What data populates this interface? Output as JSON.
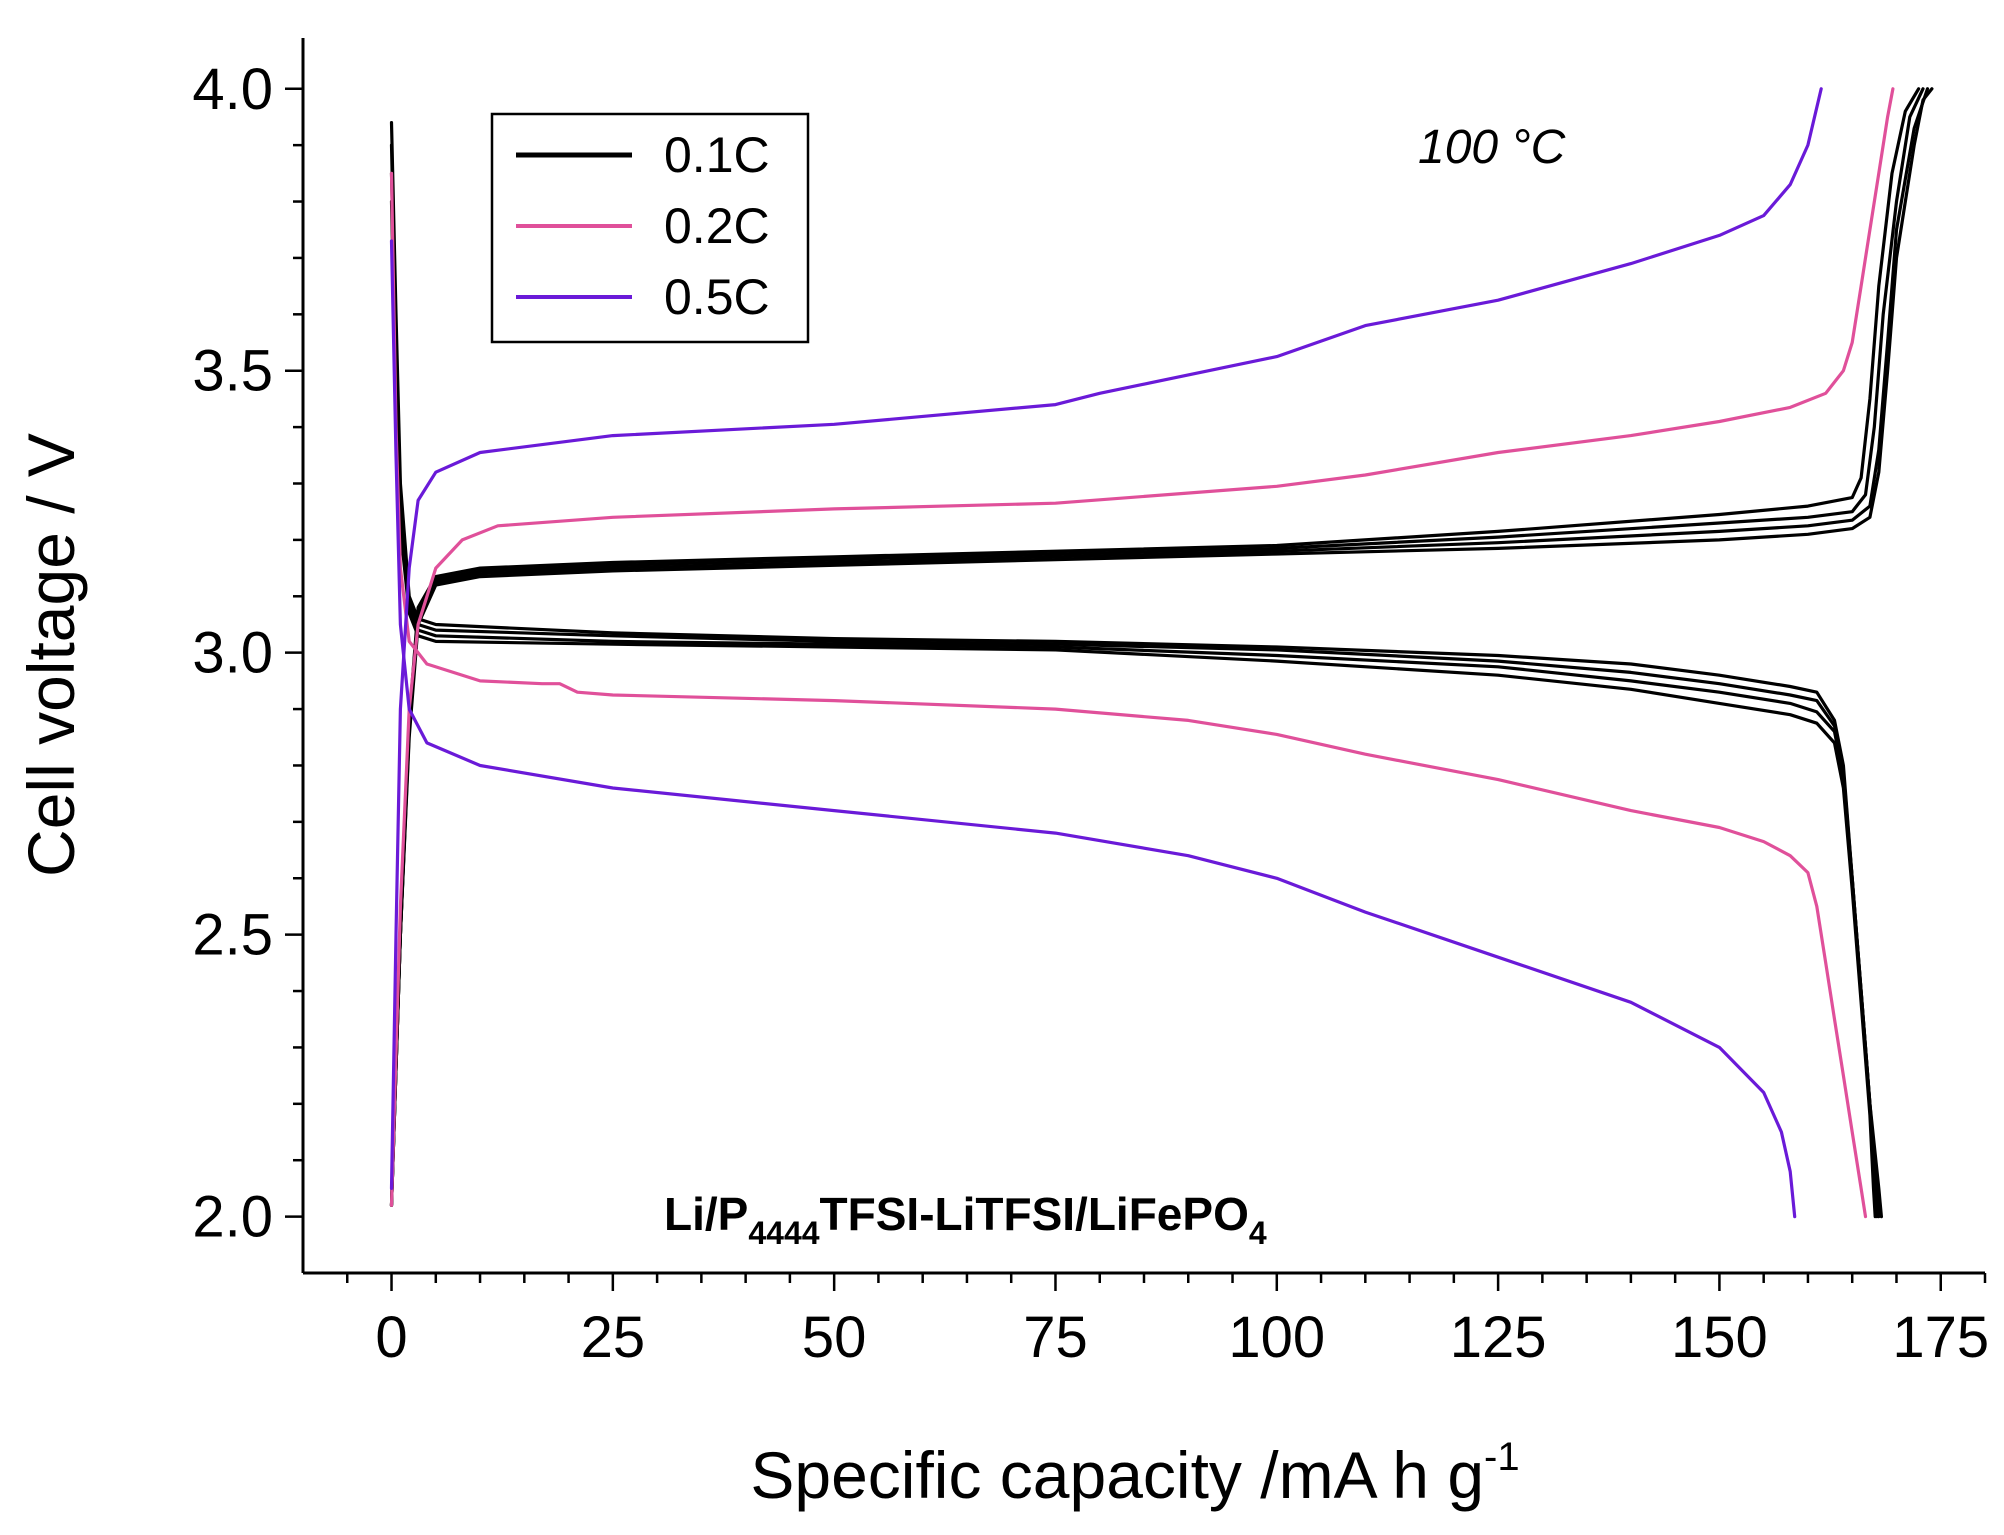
{
  "chart_data": {
    "type": "line",
    "title": "",
    "xlabel": "Specific capacity /mA h g",
    "xlabel_sup": "-1",
    "ylabel": "Cell voltage / V",
    "xlim": [
      -10,
      180
    ],
    "ylim": [
      1.9,
      4.09
    ],
    "xticks": [
      0,
      25,
      50,
      75,
      100,
      125,
      150,
      175
    ],
    "yticks": [
      2.0,
      2.5,
      3.0,
      3.5,
      4.0
    ],
    "xtick_labels": [
      "0",
      "25",
      "50",
      "75",
      "100",
      "125",
      "150",
      "175"
    ],
    "ytick_labels": [
      "2.0",
      "2.5",
      "3.0",
      "3.5",
      "4.0"
    ],
    "annotations": {
      "temperature": "100 °C",
      "cell": {
        "part1": "Li/P",
        "sub1": "4444",
        "part2": "TFSI-LiTFSI/LiFePO",
        "sub2": "4"
      }
    },
    "legend": {
      "location": "top-left",
      "entries": [
        {
          "label": "0.1C",
          "color": "#000000"
        },
        {
          "label": "0.2C",
          "color": "#e0509a"
        },
        {
          "label": "0.5C",
          "color": "#6a1ad8"
        }
      ]
    },
    "series": [
      {
        "name": "0.1C charge 1",
        "rate": "0.1C",
        "color": "#000000",
        "points": [
          [
            0,
            2.02
          ],
          [
            1,
            2.5
          ],
          [
            2,
            2.85
          ],
          [
            3,
            3.05
          ],
          [
            5,
            3.12
          ],
          [
            10,
            3.135
          ],
          [
            25,
            3.145
          ],
          [
            50,
            3.155
          ],
          [
            75,
            3.165
          ],
          [
            100,
            3.175
          ],
          [
            125,
            3.185
          ],
          [
            150,
            3.2
          ],
          [
            160,
            3.21
          ],
          [
            165,
            3.22
          ],
          [
            167,
            3.24
          ],
          [
            168,
            3.32
          ],
          [
            169,
            3.5
          ],
          [
            170,
            3.7
          ],
          [
            172,
            3.9
          ],
          [
            173,
            3.98
          ],
          [
            174,
            4.0
          ]
        ]
      },
      {
        "name": "0.1C charge 2",
        "rate": "0.1C",
        "color": "#000000",
        "points": [
          [
            0,
            2.02
          ],
          [
            1,
            2.5
          ],
          [
            2,
            2.86
          ],
          [
            3,
            3.06
          ],
          [
            5,
            3.125
          ],
          [
            10,
            3.14
          ],
          [
            25,
            3.15
          ],
          [
            50,
            3.16
          ],
          [
            75,
            3.17
          ],
          [
            100,
            3.18
          ],
          [
            125,
            3.195
          ],
          [
            150,
            3.215
          ],
          [
            160,
            3.225
          ],
          [
            165,
            3.235
          ],
          [
            167,
            3.26
          ],
          [
            168,
            3.36
          ],
          [
            169,
            3.55
          ],
          [
            170,
            3.75
          ],
          [
            172,
            3.93
          ],
          [
            173.5,
            4.0
          ]
        ]
      },
      {
        "name": "0.1C charge 3",
        "rate": "0.1C",
        "color": "#000000",
        "points": [
          [
            0,
            2.02
          ],
          [
            1,
            2.5
          ],
          [
            2,
            2.87
          ],
          [
            3,
            3.07
          ],
          [
            5,
            3.13
          ],
          [
            10,
            3.145
          ],
          [
            25,
            3.155
          ],
          [
            50,
            3.165
          ],
          [
            75,
            3.175
          ],
          [
            100,
            3.185
          ],
          [
            125,
            3.205
          ],
          [
            150,
            3.23
          ],
          [
            160,
            3.24
          ],
          [
            165,
            3.25
          ],
          [
            166.5,
            3.28
          ],
          [
            167.5,
            3.4
          ],
          [
            168.5,
            3.6
          ],
          [
            170,
            3.8
          ],
          [
            171.5,
            3.95
          ],
          [
            173,
            4.0
          ]
        ]
      },
      {
        "name": "0.1C charge 4",
        "rate": "0.1C",
        "color": "#000000",
        "points": [
          [
            0,
            2.02
          ],
          [
            1,
            2.5
          ],
          [
            2,
            2.88
          ],
          [
            3,
            3.08
          ],
          [
            5,
            3.135
          ],
          [
            10,
            3.15
          ],
          [
            25,
            3.16
          ],
          [
            50,
            3.17
          ],
          [
            75,
            3.18
          ],
          [
            100,
            3.19
          ],
          [
            125,
            3.215
          ],
          [
            150,
            3.245
          ],
          [
            160,
            3.26
          ],
          [
            165,
            3.275
          ],
          [
            166,
            3.31
          ],
          [
            167,
            3.45
          ],
          [
            168,
            3.65
          ],
          [
            169.5,
            3.85
          ],
          [
            171,
            3.96
          ],
          [
            172.5,
            4.0
          ]
        ]
      },
      {
        "name": "0.1C discharge 1",
        "rate": "0.1C",
        "color": "#000000",
        "points": [
          [
            0,
            3.94
          ],
          [
            0.5,
            3.6
          ],
          [
            1,
            3.3
          ],
          [
            2,
            3.1
          ],
          [
            3,
            3.06
          ],
          [
            5,
            3.05
          ],
          [
            25,
            3.035
          ],
          [
            50,
            3.025
          ],
          [
            75,
            3.02
          ],
          [
            100,
            3.01
          ],
          [
            125,
            2.995
          ],
          [
            140,
            2.98
          ],
          [
            150,
            2.96
          ],
          [
            158,
            2.94
          ],
          [
            161,
            2.93
          ],
          [
            163,
            2.88
          ],
          [
            164,
            2.8
          ],
          [
            165,
            2.6
          ],
          [
            166,
            2.4
          ],
          [
            167,
            2.2
          ],
          [
            168,
            2.05
          ],
          [
            168.3,
            2.0
          ]
        ]
      },
      {
        "name": "0.1C discharge 2",
        "rate": "0.1C",
        "color": "#000000",
        "points": [
          [
            0,
            3.9
          ],
          [
            0.5,
            3.55
          ],
          [
            1,
            3.28
          ],
          [
            2,
            3.09
          ],
          [
            3,
            3.05
          ],
          [
            5,
            3.04
          ],
          [
            25,
            3.03
          ],
          [
            50,
            3.02
          ],
          [
            75,
            3.015
          ],
          [
            100,
            3.005
          ],
          [
            125,
            2.985
          ],
          [
            140,
            2.965
          ],
          [
            150,
            2.945
          ],
          [
            158,
            2.925
          ],
          [
            161,
            2.915
          ],
          [
            163,
            2.87
          ],
          [
            164,
            2.79
          ],
          [
            165,
            2.6
          ],
          [
            166,
            2.4
          ],
          [
            167,
            2.2
          ],
          [
            167.8,
            2.05
          ],
          [
            168,
            2.0
          ]
        ]
      },
      {
        "name": "0.1C discharge 3",
        "rate": "0.1C",
        "color": "#000000",
        "points": [
          [
            0,
            3.85
          ],
          [
            0.5,
            3.5
          ],
          [
            1,
            3.25
          ],
          [
            2,
            3.08
          ],
          [
            3,
            3.04
          ],
          [
            5,
            3.03
          ],
          [
            25,
            3.02
          ],
          [
            50,
            3.015
          ],
          [
            75,
            3.01
          ],
          [
            100,
            2.995
          ],
          [
            125,
            2.975
          ],
          [
            140,
            2.95
          ],
          [
            150,
            2.93
          ],
          [
            158,
            2.91
          ],
          [
            161,
            2.895
          ],
          [
            163,
            2.86
          ],
          [
            164,
            2.78
          ],
          [
            165,
            2.6
          ],
          [
            166,
            2.4
          ],
          [
            167,
            2.2
          ],
          [
            167.6,
            2.05
          ],
          [
            167.8,
            2.0
          ]
        ]
      },
      {
        "name": "0.1C discharge 4",
        "rate": "0.1C",
        "color": "#000000",
        "points": [
          [
            0,
            3.8
          ],
          [
            0.5,
            3.45
          ],
          [
            1,
            3.22
          ],
          [
            2,
            3.07
          ],
          [
            3,
            3.03
          ],
          [
            5,
            3.02
          ],
          [
            25,
            3.015
          ],
          [
            50,
            3.01
          ],
          [
            75,
            3.005
          ],
          [
            100,
            2.985
          ],
          [
            125,
            2.96
          ],
          [
            140,
            2.935
          ],
          [
            150,
            2.91
          ],
          [
            158,
            2.89
          ],
          [
            161,
            2.875
          ],
          [
            163,
            2.84
          ],
          [
            164,
            2.76
          ],
          [
            165,
            2.58
          ],
          [
            166,
            2.38
          ],
          [
            167,
            2.18
          ],
          [
            167.4,
            2.05
          ],
          [
            167.6,
            2.0
          ]
        ]
      },
      {
        "name": "0.2C charge",
        "rate": "0.2C",
        "color": "#e0509a",
        "points": [
          [
            0,
            2.02
          ],
          [
            1,
            2.55
          ],
          [
            2,
            2.9
          ],
          [
            3,
            3.05
          ],
          [
            5,
            3.15
          ],
          [
            8,
            3.2
          ],
          [
            12,
            3.225
          ],
          [
            25,
            3.24
          ],
          [
            50,
            3.255
          ],
          [
            75,
            3.265
          ],
          [
            100,
            3.295
          ],
          [
            110,
            3.315
          ],
          [
            125,
            3.355
          ],
          [
            140,
            3.385
          ],
          [
            150,
            3.41
          ],
          [
            158,
            3.435
          ],
          [
            162,
            3.46
          ],
          [
            164,
            3.5
          ],
          [
            165,
            3.55
          ],
          [
            166,
            3.65
          ],
          [
            167,
            3.75
          ],
          [
            168,
            3.85
          ],
          [
            169,
            3.95
          ],
          [
            169.6,
            4.0
          ]
        ]
      },
      {
        "name": "0.2C discharge",
        "rate": "0.2C",
        "color": "#e0509a",
        "points": [
          [
            0,
            3.85
          ],
          [
            0.5,
            3.4
          ],
          [
            1,
            3.15
          ],
          [
            2,
            3.02
          ],
          [
            4,
            2.98
          ],
          [
            10,
            2.95
          ],
          [
            17,
            2.945
          ],
          [
            19,
            2.945
          ],
          [
            21,
            2.93
          ],
          [
            25,
            2.925
          ],
          [
            50,
            2.915
          ],
          [
            75,
            2.9
          ],
          [
            90,
            2.88
          ],
          [
            100,
            2.855
          ],
          [
            110,
            2.82
          ],
          [
            125,
            2.775
          ],
          [
            140,
            2.72
          ],
          [
            150,
            2.69
          ],
          [
            155,
            2.665
          ],
          [
            158,
            2.64
          ],
          [
            160,
            2.61
          ],
          [
            161,
            2.55
          ],
          [
            162,
            2.45
          ],
          [
            163,
            2.35
          ],
          [
            164,
            2.25
          ],
          [
            165,
            2.15
          ],
          [
            166,
            2.05
          ],
          [
            166.5,
            2.0
          ]
        ]
      },
      {
        "name": "0.5C charge",
        "rate": "0.5C",
        "color": "#6a1ad8",
        "points": [
          [
            0,
            2.05
          ],
          [
            0.5,
            2.5
          ],
          [
            1,
            2.9
          ],
          [
            2,
            3.15
          ],
          [
            3,
            3.27
          ],
          [
            5,
            3.32
          ],
          [
            10,
            3.355
          ],
          [
            25,
            3.385
          ],
          [
            50,
            3.405
          ],
          [
            75,
            3.44
          ],
          [
            80,
            3.46
          ],
          [
            100,
            3.525
          ],
          [
            110,
            3.58
          ],
          [
            125,
            3.625
          ],
          [
            140,
            3.69
          ],
          [
            150,
            3.74
          ],
          [
            155,
            3.775
          ],
          [
            158,
            3.83
          ],
          [
            160,
            3.9
          ],
          [
            161.5,
            4.0
          ]
        ]
      },
      {
        "name": "0.5C discharge",
        "rate": "0.5C",
        "color": "#6a1ad8",
        "points": [
          [
            0,
            3.73
          ],
          [
            0.5,
            3.35
          ],
          [
            1,
            3.05
          ],
          [
            2,
            2.9
          ],
          [
            4,
            2.84
          ],
          [
            10,
            2.8
          ],
          [
            25,
            2.76
          ],
          [
            50,
            2.72
          ],
          [
            75,
            2.68
          ],
          [
            90,
            2.64
          ],
          [
            100,
            2.6
          ],
          [
            110,
            2.54
          ],
          [
            125,
            2.46
          ],
          [
            140,
            2.38
          ],
          [
            150,
            2.3
          ],
          [
            155,
            2.22
          ],
          [
            157,
            2.15
          ],
          [
            158,
            2.08
          ],
          [
            158.5,
            2.0
          ]
        ]
      }
    ]
  }
}
